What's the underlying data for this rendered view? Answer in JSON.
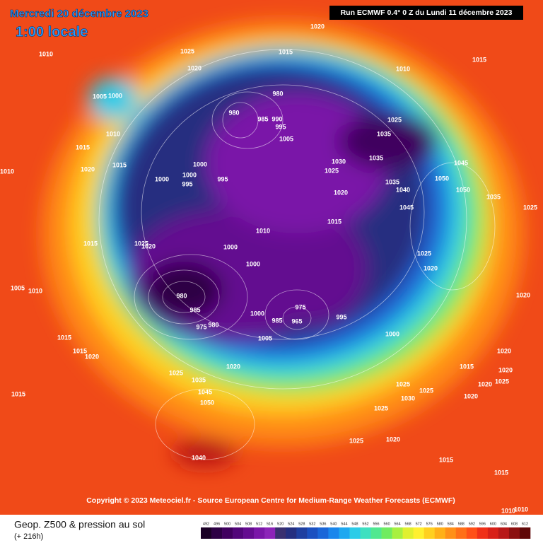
{
  "header": {
    "title": "Mercredi 20 décembre 2023",
    "time": "1:00 locale",
    "run": "Run ECMWF 0.4° 0 Z du Lundi 11 décembre 2023"
  },
  "copyright": "Copyright © 2023 Meteociel.fr - Source European Centre for Medium-Range Weather Forecasts (ECMWF)",
  "footer": {
    "title": "Geop. Z500 & pression au sol",
    "lead": "(+ 216h)"
  },
  "colorbar": {
    "ticks": [
      492,
      496,
      500,
      504,
      508,
      512,
      516,
      520,
      524,
      528,
      532,
      536,
      540,
      544,
      548,
      552,
      556,
      560,
      564,
      568,
      572,
      576,
      580,
      584,
      588,
      592,
      596,
      600,
      604,
      608,
      612
    ],
    "colors": [
      "#1a0026",
      "#2d0045",
      "#40005f",
      "#52067a",
      "#640c90",
      "#7a16a8",
      "#8c24b8",
      "#3a3070",
      "#252f80",
      "#1f3fa0",
      "#1b50c0",
      "#1a66d8",
      "#1a86ec",
      "#1ea8f0",
      "#2ccce8",
      "#3ee0c0",
      "#50e890",
      "#70ec60",
      "#a8f040",
      "#e0f030",
      "#fff030",
      "#ffd020",
      "#ffb018",
      "#ff9018",
      "#ff7018",
      "#ff5018",
      "#f03018",
      "#d82018",
      "#b81818",
      "#8c1010",
      "#600808"
    ]
  },
  "isobars": [
    1020,
    1010,
    1025,
    1015,
    1015,
    1010,
    1020,
    1005,
    1000,
    980,
    980,
    985,
    990,
    995,
    1010,
    1005,
    1025,
    1035,
    1015,
    1015,
    1020,
    1000,
    1035,
    1045,
    1030,
    1025,
    1010,
    1000,
    1000,
    995,
    995,
    1020,
    1035,
    1050,
    1040,
    1050,
    1045,
    1035,
    1025,
    1015,
    1010,
    1025,
    1020,
    1015,
    1000,
    1000,
    1025,
    1020,
    980,
    985,
    975,
    965,
    985,
    995,
    1000,
    1005,
    1000,
    1005,
    1010,
    1015,
    1015,
    1020,
    1015,
    1020,
    1025,
    1035,
    1045,
    1050,
    1040,
    1015,
    1020,
    1020,
    1020,
    1025,
    1020,
    1025,
    1025,
    1030,
    1025,
    1020,
    1025,
    1020,
    1015,
    1015,
    1010,
    1010,
    975,
    980
  ]
}
